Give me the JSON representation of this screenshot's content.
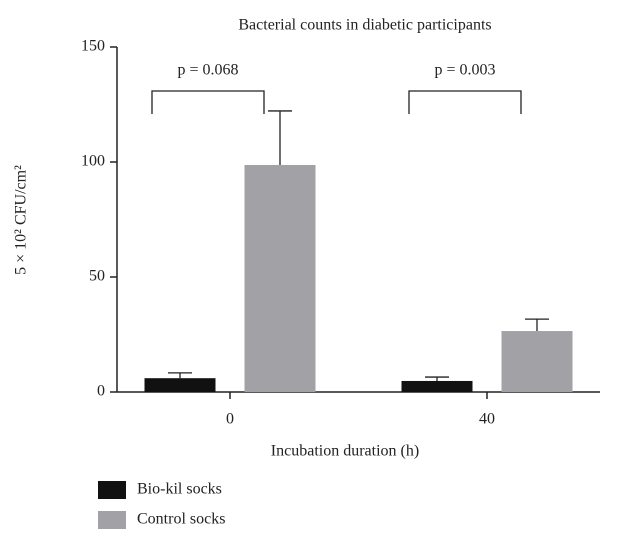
{
  "chart_data": {
    "type": "bar",
    "title": "Bacterial counts in diabetic participants",
    "x_label": "Incubation duration (h)",
    "y_label": "5 × 10² CFU/cm²",
    "categories": [
      "0",
      "40"
    ],
    "series": [
      {
        "name": "Bio-kil socks",
        "color": "#111111",
        "values": [
          6,
          4.8
        ],
        "errors": [
          2.3,
          1.7
        ]
      },
      {
        "name": "Control socks",
        "color": "#a2a2a6",
        "values": [
          98.7,
          26.5
        ],
        "errors": [
          23.5,
          5.2
        ]
      }
    ],
    "annotations": [
      "p = 0.068",
      "p = 0.003"
    ],
    "ylim": [
      0,
      150
    ],
    "yticks": [
      0,
      50,
      100,
      150
    ],
    "grid": false,
    "legend": "bottom-left"
  }
}
